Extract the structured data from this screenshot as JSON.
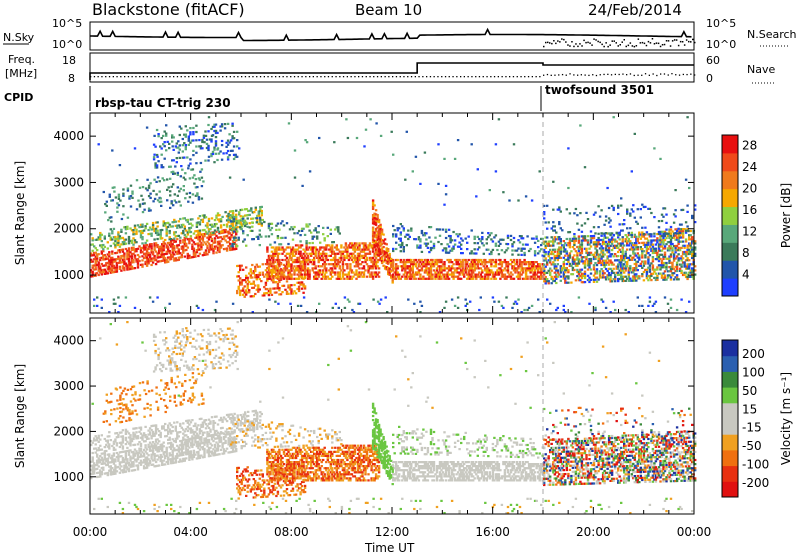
{
  "header": {
    "station": "Blackstone (fitACF)",
    "beam": "Beam 10",
    "date": "24/Feb/2014"
  },
  "strip": {
    "nsky_label": "N.Sky",
    "nsky_ticks": [
      "10^5",
      "10^0"
    ],
    "nsky_right_ticks": [
      "10^5",
      "10^0"
    ],
    "nsearch_label": "N.Search",
    "freq_label_1": "Freq.",
    "freq_label_2": "[MHz]",
    "freq_ticks": [
      "18",
      "8"
    ],
    "nave_ticks": [
      "60",
      "0"
    ],
    "nave_label": "Nave",
    "cpid_label": "CPID",
    "cpid_1": "rbsp-tau CT-trig 230",
    "cpid_2": "twofsound 3501"
  },
  "colors": {
    "power_scale": [
      "#1f3fff",
      "#2255aa",
      "#3a7a5a",
      "#58a87a",
      "#8fcf3f",
      "#f5a800",
      "#f07a1c",
      "#f04a1a",
      "#e81010"
    ],
    "velocity_scale": [
      "#1a2fa0",
      "#2a5fb0",
      "#3a8a3a",
      "#6ac640",
      "#c8c8c0",
      "#c8c8c0",
      "#f0a020",
      "#f07010",
      "#e83010",
      "#e01010"
    ]
  },
  "chart_data": [
    {
      "type": "heatmap",
      "title": "Power",
      "xlabel": "Time UT",
      "ylabel": "Slant Range [km]",
      "x_ticks": [
        "00:00",
        "04:00",
        "08:00",
        "12:00",
        "16:00",
        "20:00",
        "00:00"
      ],
      "y_ticks": [
        1000,
        2000,
        3000,
        4000
      ],
      "ylim": [
        180,
        4500
      ],
      "colorbar_label": "Power [dB]",
      "colorbar_ticks": [
        28,
        24,
        20,
        16,
        12,
        8,
        4
      ],
      "colorbar_range": [
        0,
        30
      ]
    },
    {
      "type": "heatmap",
      "title": "Velocity",
      "xlabel": "Time UT",
      "ylabel": "Slant Range [km]",
      "x_ticks": [
        "00:00",
        "04:00",
        "08:00",
        "12:00",
        "16:00",
        "20:00",
        "00:00"
      ],
      "y_ticks": [
        1000,
        2000,
        3000,
        4000
      ],
      "ylim": [
        180,
        4500
      ],
      "colorbar_label": "Velocity [m s⁻¹]",
      "colorbar_ticks": [
        200,
        100,
        50,
        15,
        -15,
        -50,
        -100,
        -200
      ],
      "colorbar_range": [
        -250,
        250
      ]
    }
  ]
}
